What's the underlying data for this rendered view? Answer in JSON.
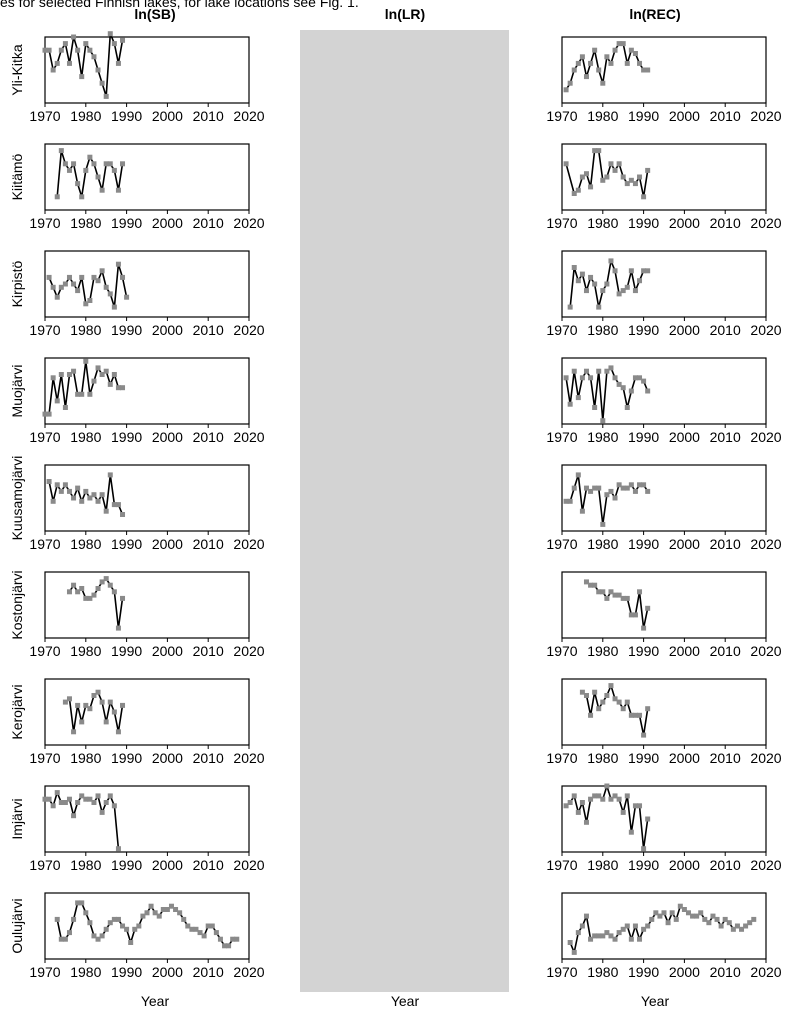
{
  "caption": "es for selected Finnish lakes, for lake locations see Fig. 1.",
  "columns": {
    "sb": "ln(SB)",
    "lr": "ln(LR)",
    "rec": "ln(REC)"
  },
  "xlabel": "Year",
  "chart_data": {
    "type": "line",
    "layout": "small multiples: 9 lakes (rows) x 3 variables (columns); ln(LR) column is a blank grey band",
    "xlim": [
      1970,
      2020
    ],
    "xticks": [
      1970,
      1980,
      1990,
      2000,
      2010,
      2020
    ],
    "yticks_shown": false,
    "xlabel": "Year",
    "marker": "grey square on black line",
    "lakes": [
      {
        "name": "Yli-Kitka",
        "sb": {
          "x": [
            1970,
            1971,
            1972,
            1973,
            1974,
            1975,
            1976,
            1977,
            1978,
            1979,
            1980,
            1981,
            1982,
            1983,
            1984,
            1985,
            1986,
            1987,
            1988,
            1989
          ],
          "y": [
            0.8,
            0.8,
            0.5,
            0.6,
            0.8,
            0.9,
            0.6,
            1.0,
            0.8,
            0.4,
            0.9,
            0.8,
            0.7,
            0.5,
            0.3,
            0.1,
            1.05,
            0.9,
            0.6,
            0.95
          ]
        },
        "rec": {
          "x": [
            1971,
            1972,
            1973,
            1974,
            1975,
            1976,
            1977,
            1978,
            1979,
            1980,
            1981,
            1982,
            1983,
            1984,
            1985,
            1986,
            1987,
            1988,
            1989,
            1990,
            1991
          ],
          "y": [
            0.2,
            0.3,
            0.5,
            0.6,
            0.7,
            0.4,
            0.6,
            0.8,
            0.5,
            0.3,
            0.7,
            0.6,
            0.8,
            0.9,
            0.9,
            0.6,
            0.8,
            0.75,
            0.6,
            0.5,
            0.5
          ]
        }
      },
      {
        "name": "Kiitämö",
        "sb": {
          "x": [
            1973,
            1974,
            1975,
            1976,
            1977,
            1978,
            1979,
            1980,
            1981,
            1982,
            1983,
            1984,
            1985,
            1986,
            1987,
            1988,
            1989
          ],
          "y": [
            0.2,
            0.9,
            0.7,
            0.6,
            0.7,
            0.4,
            0.2,
            0.6,
            0.8,
            0.7,
            0.5,
            0.3,
            0.7,
            0.7,
            0.6,
            0.3,
            0.7
          ]
        },
        "rec": {
          "x": [
            1971,
            1973,
            1974,
            1975,
            1976,
            1977,
            1978,
            1979,
            1980,
            1981,
            1982,
            1983,
            1984,
            1985,
            1986,
            1987,
            1988,
            1989,
            1990,
            1991
          ],
          "y": [
            0.7,
            0.25,
            0.3,
            0.5,
            0.55,
            0.35,
            0.9,
            0.9,
            0.45,
            0.5,
            0.7,
            0.6,
            0.7,
            0.5,
            0.4,
            0.45,
            0.4,
            0.5,
            0.2,
            0.6
          ]
        }
      },
      {
        "name": "Kirpistö",
        "sb": {
          "x": [
            1971,
            1972,
            1973,
            1974,
            1975,
            1976,
            1977,
            1978,
            1979,
            1980,
            1981,
            1982,
            1983,
            1984,
            1985,
            1986,
            1987,
            1988,
            1989,
            1990
          ],
          "y": [
            0.6,
            0.45,
            0.3,
            0.45,
            0.5,
            0.6,
            0.5,
            0.4,
            0.6,
            0.2,
            0.25,
            0.6,
            0.55,
            0.7,
            0.45,
            0.35,
            0.15,
            0.8,
            0.6,
            0.3
          ]
        },
        "rec": {
          "x": [
            1972,
            1973,
            1974,
            1975,
            1976,
            1977,
            1978,
            1979,
            1980,
            1981,
            1982,
            1983,
            1984,
            1985,
            1986,
            1987,
            1988,
            1989,
            1990,
            1991
          ],
          "y": [
            0.15,
            0.75,
            0.55,
            0.65,
            0.4,
            0.6,
            0.5,
            0.15,
            0.4,
            0.5,
            0.85,
            0.7,
            0.35,
            0.4,
            0.45,
            0.7,
            0.4,
            0.55,
            0.7,
            0.7
          ]
        }
      },
      {
        "name": "Muojärvi",
        "sb": {
          "x": [
            1970,
            1971,
            1972,
            1973,
            1974,
            1975,
            1976,
            1977,
            1978,
            1979,
            1980,
            1981,
            1982,
            1983,
            1984,
            1985,
            1986,
            1987,
            1988,
            1989
          ],
          "y": [
            0.15,
            0.15,
            0.7,
            0.35,
            0.75,
            0.25,
            0.75,
            0.8,
            0.45,
            0.45,
            0.95,
            0.45,
            0.65,
            0.85,
            0.75,
            0.8,
            0.6,
            0.75,
            0.55,
            0.55
          ]
        },
        "rec": {
          "x": [
            1971,
            1972,
            1973,
            1974,
            1975,
            1976,
            1977,
            1978,
            1979,
            1980,
            1981,
            1982,
            1983,
            1984,
            1985,
            1986,
            1987,
            1988,
            1989,
            1990,
            1991
          ],
          "y": [
            0.7,
            0.3,
            0.8,
            0.4,
            0.7,
            0.8,
            0.7,
            0.25,
            0.8,
            0.05,
            0.8,
            0.85,
            0.7,
            0.6,
            0.55,
            0.25,
            0.5,
            0.7,
            0.7,
            0.65,
            0.5
          ]
        }
      },
      {
        "name": "Kuusamojärvi",
        "sb": {
          "x": [
            1971,
            1972,
            1973,
            1974,
            1975,
            1976,
            1977,
            1978,
            1979,
            1980,
            1981,
            1982,
            1983,
            1984,
            1985,
            1986,
            1987,
            1988,
            1989
          ],
          "y": [
            0.75,
            0.45,
            0.7,
            0.6,
            0.7,
            0.6,
            0.5,
            0.65,
            0.45,
            0.6,
            0.5,
            0.55,
            0.45,
            0.55,
            0.3,
            0.85,
            0.4,
            0.4,
            0.25
          ]
        },
        "rec": {
          "x": [
            1971,
            1972,
            1973,
            1974,
            1975,
            1976,
            1977,
            1978,
            1979,
            1980,
            1981,
            1982,
            1983,
            1984,
            1985,
            1986,
            1987,
            1988,
            1989,
            1990,
            1991
          ],
          "y": [
            0.45,
            0.45,
            0.65,
            0.85,
            0.3,
            0.65,
            0.6,
            0.65,
            0.65,
            0.1,
            0.55,
            0.6,
            0.5,
            0.7,
            0.65,
            0.65,
            0.7,
            0.6,
            0.7,
            0.7,
            0.6
          ]
        }
      },
      {
        "name": "Kostonjärvi",
        "sb": {
          "x": [
            1976,
            1977,
            1978,
            1979,
            1980,
            1981,
            1982,
            1983,
            1984,
            1985,
            1986,
            1987,
            1988,
            1989
          ],
          "y": [
            0.7,
            0.8,
            0.7,
            0.75,
            0.6,
            0.6,
            0.65,
            0.75,
            0.85,
            0.9,
            0.8,
            0.7,
            0.15,
            0.6
          ]
        },
        "rec": {
          "x": [
            1976,
            1977,
            1978,
            1979,
            1980,
            1981,
            1982,
            1983,
            1984,
            1985,
            1986,
            1987,
            1988,
            1989,
            1990,
            1991
          ],
          "y": [
            0.85,
            0.8,
            0.8,
            0.7,
            0.7,
            0.6,
            0.7,
            0.65,
            0.65,
            0.6,
            0.6,
            0.35,
            0.35,
            0.7,
            0.15,
            0.45
          ]
        }
      },
      {
        "name": "Kerojärvi",
        "sb": {
          "x": [
            1975,
            1976,
            1977,
            1978,
            1979,
            1980,
            1981,
            1982,
            1983,
            1984,
            1985,
            1986,
            1987,
            1988,
            1989
          ],
          "y": [
            0.65,
            0.7,
            0.2,
            0.6,
            0.35,
            0.6,
            0.55,
            0.75,
            0.8,
            0.65,
            0.35,
            0.65,
            0.5,
            0.2,
            0.6
          ]
        },
        "rec": {
          "x": [
            1975,
            1976,
            1977,
            1978,
            1979,
            1980,
            1981,
            1982,
            1983,
            1984,
            1985,
            1986,
            1987,
            1988,
            1989,
            1990,
            1991
          ],
          "y": [
            0.8,
            0.75,
            0.45,
            0.8,
            0.55,
            0.65,
            0.75,
            0.9,
            0.7,
            0.65,
            0.55,
            0.65,
            0.45,
            0.45,
            0.45,
            0.15,
            0.55
          ]
        }
      },
      {
        "name": "Imjärvi",
        "sb": {
          "x": [
            1970,
            1971,
            1972,
            1973,
            1974,
            1975,
            1976,
            1977,
            1978,
            1979,
            1980,
            1981,
            1982,
            1983,
            1984,
            1985,
            1986,
            1987,
            1988
          ],
          "y": [
            0.8,
            0.8,
            0.7,
            0.9,
            0.75,
            0.75,
            0.8,
            0.55,
            0.75,
            0.85,
            0.8,
            0.8,
            0.75,
            0.85,
            0.6,
            0.75,
            0.85,
            0.7,
            0.05
          ]
        },
        "rec": {
          "x": [
            1971,
            1972,
            1973,
            1974,
            1975,
            1976,
            1977,
            1978,
            1979,
            1980,
            1981,
            1982,
            1983,
            1984,
            1985,
            1986,
            1987,
            1988,
            1989,
            1990,
            1991
          ],
          "y": [
            0.7,
            0.75,
            0.85,
            0.6,
            0.75,
            0.45,
            0.8,
            0.85,
            0.85,
            0.8,
            1.0,
            0.8,
            0.85,
            0.8,
            0.6,
            0.85,
            0.3,
            0.7,
            0.7,
            0.05,
            0.5
          ]
        }
      },
      {
        "name": "Oulujärvi",
        "sb": {
          "x": [
            1973,
            1974,
            1975,
            1976,
            1977,
            1978,
            1979,
            1980,
            1981,
            1982,
            1983,
            1984,
            1985,
            1986,
            1987,
            1988,
            1989,
            1990,
            1991,
            1992,
            1993,
            1994,
            1995,
            1996,
            1997,
            1998,
            1999,
            2000,
            2001,
            2002,
            2003,
            2004,
            2005,
            2006,
            2007,
            2008,
            2009,
            2010,
            2011,
            2012,
            2013,
            2014,
            2015,
            2016,
            2017
          ],
          "y": [
            0.6,
            0.3,
            0.3,
            0.4,
            0.6,
            0.85,
            0.85,
            0.7,
            0.55,
            0.35,
            0.3,
            0.35,
            0.45,
            0.55,
            0.6,
            0.6,
            0.5,
            0.45,
            0.25,
            0.45,
            0.5,
            0.65,
            0.7,
            0.8,
            0.7,
            0.65,
            0.75,
            0.75,
            0.8,
            0.75,
            0.7,
            0.6,
            0.5,
            0.45,
            0.45,
            0.4,
            0.35,
            0.5,
            0.5,
            0.4,
            0.3,
            0.2,
            0.2,
            0.3,
            0.3
          ]
        },
        "rec": {
          "x": [
            1972,
            1973,
            1974,
            1975,
            1976,
            1977,
            1978,
            1979,
            1980,
            1981,
            1982,
            1983,
            1984,
            1985,
            1986,
            1987,
            1988,
            1989,
            1990,
            1991,
            1992,
            1993,
            1994,
            1995,
            1996,
            1997,
            1998,
            1999,
            2000,
            2001,
            2002,
            2003,
            2004,
            2005,
            2006,
            2007,
            2008,
            2009,
            2010,
            2011,
            2012,
            2013,
            2014,
            2015,
            2016,
            2017
          ],
          "y": [
            0.25,
            0.1,
            0.4,
            0.5,
            0.65,
            0.3,
            0.35,
            0.35,
            0.35,
            0.4,
            0.35,
            0.3,
            0.4,
            0.45,
            0.5,
            0.3,
            0.5,
            0.3,
            0.45,
            0.5,
            0.6,
            0.7,
            0.65,
            0.7,
            0.55,
            0.7,
            0.6,
            0.8,
            0.75,
            0.7,
            0.65,
            0.65,
            0.7,
            0.6,
            0.55,
            0.65,
            0.6,
            0.5,
            0.6,
            0.55,
            0.45,
            0.5,
            0.45,
            0.5,
            0.55,
            0.6
          ]
        }
      }
    ]
  }
}
